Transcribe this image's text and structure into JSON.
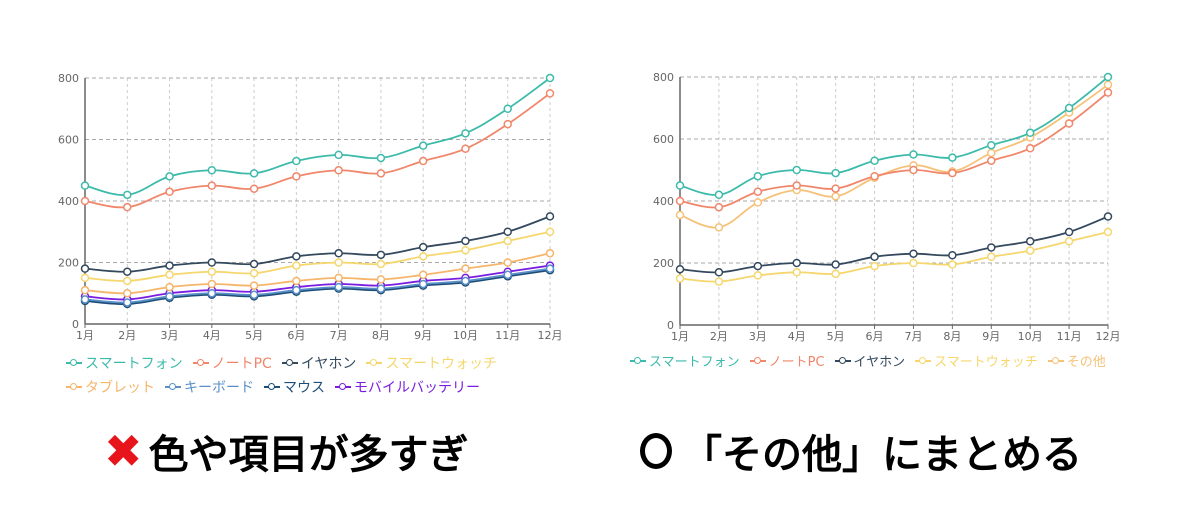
{
  "chart_data": [
    {
      "type": "line",
      "categories": [
        "1月",
        "2月",
        "3月",
        "4月",
        "5月",
        "6月",
        "7月",
        "8月",
        "9月",
        "10月",
        "11月",
        "12月"
      ],
      "ylim": [
        0,
        800
      ],
      "yticks": [
        0,
        200,
        400,
        600,
        800
      ],
      "grid": true,
      "legend": "bottom",
      "series": [
        {
          "name": "スマートフォン",
          "color": "#3dbbaa",
          "values": [
            450,
            420,
            480,
            500,
            490,
            530,
            550,
            540,
            580,
            620,
            700,
            800
          ]
        },
        {
          "name": "ノートPC",
          "color": "#f0866a",
          "values": [
            400,
            380,
            430,
            450,
            440,
            480,
            500,
            490,
            530,
            570,
            650,
            750
          ]
        },
        {
          "name": "イヤホン",
          "color": "#34495e",
          "values": [
            180,
            170,
            190,
            200,
            195,
            220,
            230,
            225,
            250,
            270,
            300,
            350
          ]
        },
        {
          "name": "スマートウォッチ",
          "color": "#f5d76e",
          "values": [
            150,
            140,
            160,
            170,
            165,
            190,
            200,
            195,
            220,
            240,
            270,
            300
          ]
        },
        {
          "name": "タブレット",
          "color": "#f5b56a",
          "values": [
            110,
            100,
            120,
            130,
            125,
            140,
            150,
            145,
            160,
            180,
            200,
            230
          ]
        },
        {
          "name": "キーボード",
          "color": "#5a8fc8",
          "values": [
            80,
            70,
            90,
            100,
            95,
            110,
            120,
            115,
            130,
            140,
            160,
            180
          ]
        },
        {
          "name": "マウス",
          "color": "#1d4e78",
          "values": [
            75,
            65,
            85,
            95,
            90,
            105,
            115,
            110,
            125,
            135,
            155,
            175
          ]
        },
        {
          "name": "モバイルバッテリー",
          "color": "#7a1de0",
          "values": [
            90,
            80,
            100,
            110,
            105,
            120,
            130,
            125,
            140,
            150,
            170,
            190
          ]
        }
      ]
    },
    {
      "type": "line",
      "categories": [
        "1月",
        "2月",
        "3月",
        "4月",
        "5月",
        "6月",
        "7月",
        "8月",
        "9月",
        "10月",
        "11月",
        "12月"
      ],
      "ylim": [
        0,
        800
      ],
      "yticks": [
        0,
        200,
        400,
        600,
        800
      ],
      "grid": true,
      "legend": "bottom",
      "series": [
        {
          "name": "スマートフォン",
          "color": "#3dbbaa",
          "values": [
            450,
            420,
            480,
            500,
            490,
            530,
            550,
            540,
            580,
            620,
            700,
            800
          ]
        },
        {
          "name": "ノートPC",
          "color": "#f0866a",
          "values": [
            400,
            380,
            430,
            450,
            440,
            480,
            500,
            490,
            530,
            570,
            650,
            750
          ]
        },
        {
          "name": "イヤホン",
          "color": "#34495e",
          "values": [
            180,
            170,
            190,
            200,
            195,
            220,
            230,
            225,
            250,
            270,
            300,
            350
          ]
        },
        {
          "name": "スマートウォッチ",
          "color": "#f5d76e",
          "values": [
            150,
            140,
            160,
            170,
            165,
            190,
            200,
            195,
            220,
            240,
            270,
            300
          ]
        },
        {
          "name": "その他",
          "color": "#f5c27a",
          "values": [
            355,
            315,
            395,
            435,
            415,
            475,
            515,
            495,
            555,
            605,
            685,
            775
          ]
        }
      ]
    }
  ],
  "captions": {
    "bad_icon": "cross-mark-icon",
    "bad_color": "#e8141b",
    "bad": "色や項目が多すぎ",
    "good_icon": "circle-mark-icon",
    "good": "「その他」にまとめる"
  }
}
